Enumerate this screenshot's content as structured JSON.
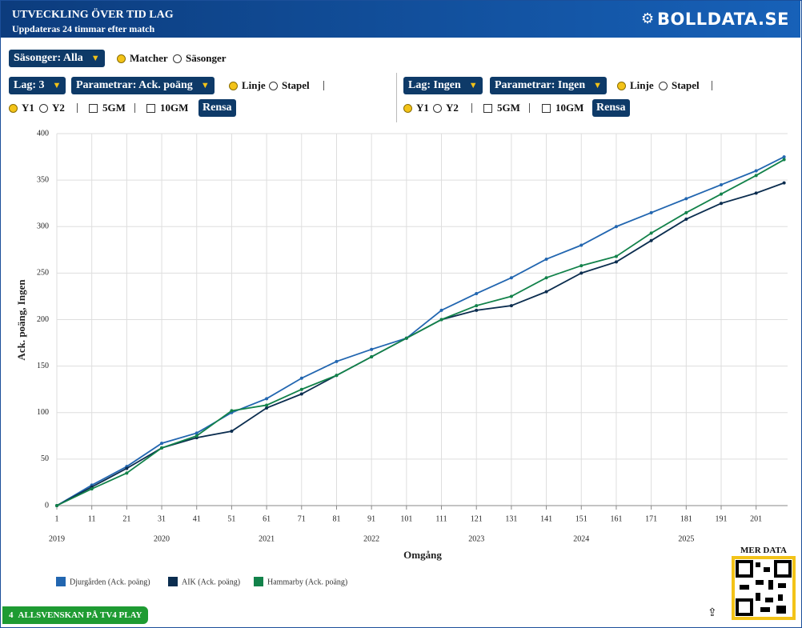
{
  "header": {
    "title": "UTVECKLING ÖVER TID LAG",
    "subtitle": "Uppdateras 24 timmar efter match",
    "brand": "BOLLDATA.SE"
  },
  "controls": {
    "seasons": {
      "dropdown": "Säsonger: Alla",
      "radio_1": "Matcher",
      "radio_2": "Säsonger"
    },
    "left": {
      "team": "Lag: 3",
      "parameter": "Parametrar: Ack. poäng",
      "line": "Linje",
      "bar": "Stapel",
      "y1": "Y1",
      "y2": "Y2",
      "gm5": "5GM",
      "gm10": "10GM",
      "clear": "Rensa"
    },
    "right": {
      "team": "Lag: Ingen",
      "parameter": "Parametrar: Ingen",
      "line": "Linje",
      "bar": "Stapel",
      "y1": "Y1",
      "y2": "Y2",
      "gm5": "5GM",
      "gm10": "10GM",
      "clear": "Rensa"
    }
  },
  "chart_data": {
    "type": "line",
    "x_label": "Omgång",
    "y_label": "Ack. poäng, Ingen",
    "x": [
      1,
      11,
      21,
      31,
      41,
      51,
      61,
      71,
      81,
      91,
      101,
      111,
      121,
      131,
      141,
      151,
      161,
      171,
      181,
      191,
      201,
      209
    ],
    "xlim": [
      1,
      210
    ],
    "xticks": [
      1,
      11,
      21,
      31,
      41,
      51,
      61,
      71,
      81,
      91,
      101,
      111,
      121,
      131,
      141,
      151,
      161,
      171,
      181,
      191,
      201
    ],
    "x_season_labels": [
      {
        "value": 1,
        "label": "2019"
      },
      {
        "value": 31,
        "label": "2020"
      },
      {
        "value": 61,
        "label": "2021"
      },
      {
        "value": 91,
        "label": "2022"
      },
      {
        "value": 121,
        "label": "2023"
      },
      {
        "value": 151,
        "label": "2024"
      },
      {
        "value": 181,
        "label": "2025"
      }
    ],
    "ylim": [
      0,
      400
    ],
    "yticks": [
      0,
      50,
      100,
      150,
      200,
      250,
      300,
      350,
      400
    ],
    "grid": true,
    "series": [
      {
        "name": "Djurgården (Ack. poäng)",
        "color": "#2266b0",
        "values": [
          0,
          22,
          42,
          67,
          78,
          100,
          115,
          137,
          155,
          168,
          180,
          210,
          228,
          245,
          265,
          280,
          300,
          315,
          330,
          345,
          360,
          375
        ]
      },
      {
        "name": "AIK (Ack. poäng)",
        "color": "#0b2d4f",
        "values": [
          0,
          20,
          40,
          62,
          73,
          80,
          105,
          120,
          140,
          160,
          180,
          200,
          210,
          215,
          230,
          250,
          262,
          285,
          308,
          325,
          336,
          347
        ]
      },
      {
        "name": "Hammarby (Ack. poäng)",
        "color": "#12824a",
        "values": [
          0,
          18,
          35,
          62,
          75,
          102,
          108,
          125,
          140,
          160,
          180,
          200,
          215,
          225,
          245,
          258,
          268,
          293,
          315,
          335,
          355,
          372
        ]
      }
    ]
  },
  "footer": {
    "channel_number": "4",
    "promo": "ALLSVENSKAN PÅ TV4 PLAY",
    "more_data": "MER DATA"
  }
}
